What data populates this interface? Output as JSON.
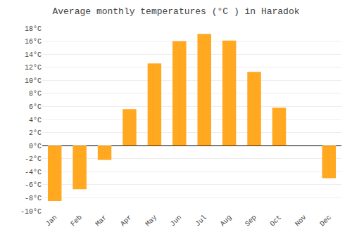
{
  "chart_data": {
    "type": "bar",
    "title": "Average monthly temperatures (°C ) in Haradok",
    "categories": [
      "Jan",
      "Feb",
      "Mar",
      "Apr",
      "May",
      "Jun",
      "Jul",
      "Aug",
      "Sep",
      "Oct",
      "Nov",
      "Dec"
    ],
    "values": [
      -8.5,
      -6.7,
      -2.2,
      5.6,
      12.6,
      16.0,
      17.1,
      16.1,
      11.3,
      5.8,
      0.0,
      -5.0
    ],
    "color": "#FFA820",
    "ylim": [
      -10,
      18
    ],
    "yticks": [
      {
        "value": -10,
        "label": "-10°C"
      },
      {
        "value": -8,
        "label": "-8°C"
      },
      {
        "value": -6,
        "label": "-6°C"
      },
      {
        "value": -4,
        "label": "-4°C"
      },
      {
        "value": -2,
        "label": "-2°C"
      },
      {
        "value": 0,
        "label": "0°C"
      },
      {
        "value": 2,
        "label": "2°C"
      },
      {
        "value": 4,
        "label": "4°C"
      },
      {
        "value": 6,
        "label": "6°C"
      },
      {
        "value": 8,
        "label": "8°C"
      },
      {
        "value": 10,
        "label": "10°C"
      },
      {
        "value": 12,
        "label": "12°C"
      },
      {
        "value": 14,
        "label": "14°C"
      },
      {
        "value": 16,
        "label": "16°C"
      },
      {
        "value": 18,
        "label": "18°C"
      }
    ],
    "grid": true
  }
}
